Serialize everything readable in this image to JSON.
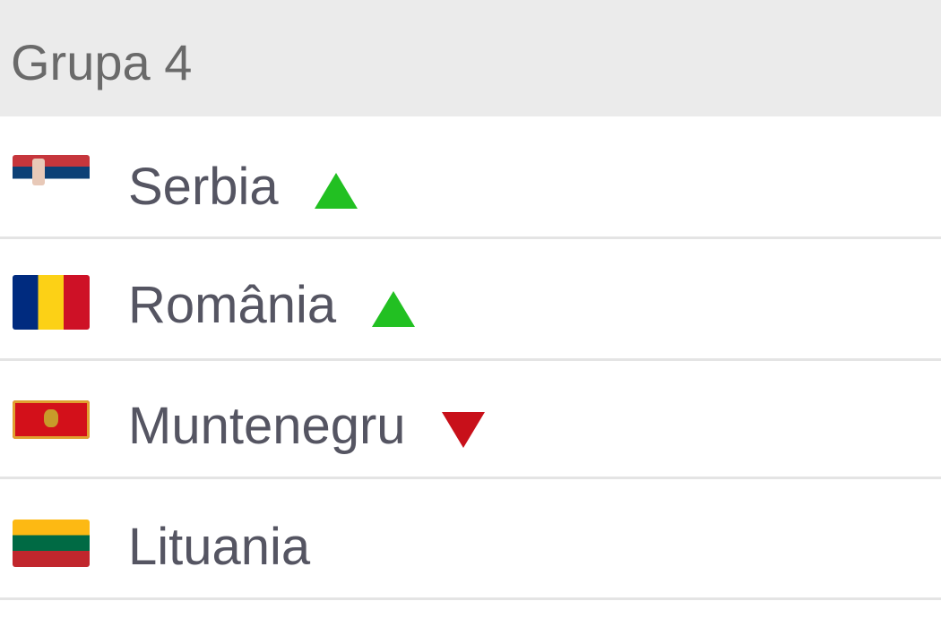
{
  "group": {
    "title": "Grupa 4"
  },
  "teams": [
    {
      "name": "Serbia",
      "flag": "serbia-flag",
      "trend": "up"
    },
    {
      "name": "România",
      "flag": "romania-flag",
      "trend": "up"
    },
    {
      "name": "Muntenegru",
      "flag": "montenegro-flag",
      "trend": "down"
    },
    {
      "name": "Lituania",
      "flag": "lithuania-flag",
      "trend": "none"
    }
  ],
  "colors": {
    "up": "#22c022",
    "down": "#c8101a",
    "header_bg": "#ebebeb"
  }
}
